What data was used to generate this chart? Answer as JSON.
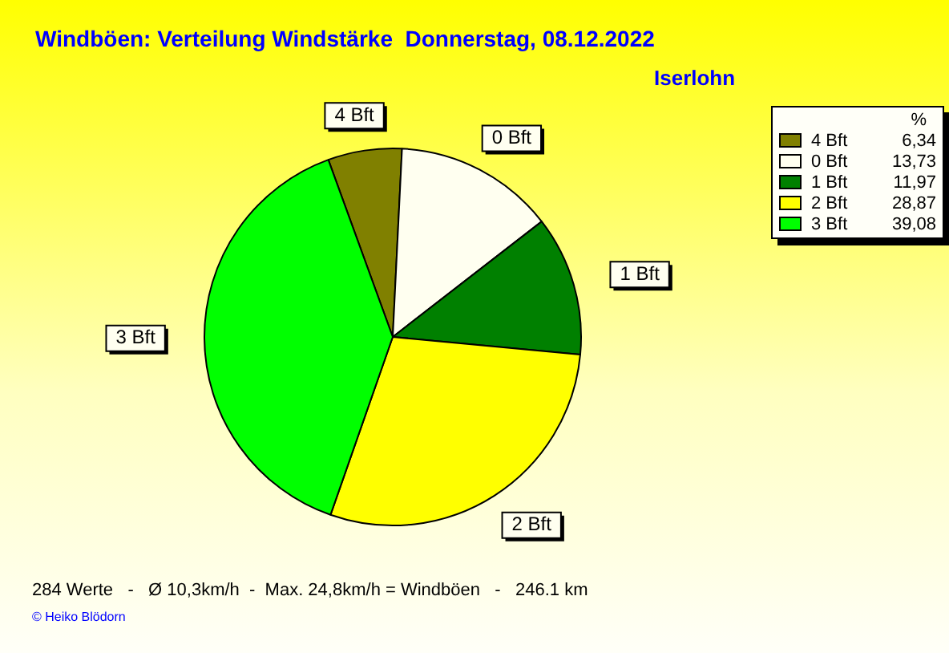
{
  "chart_data": {
    "type": "pie",
    "title": "Windböen: Verteilung Windstärke  Donnerstag, 08.12.2022",
    "subtitle": "Iserlohn",
    "legend_title": "%",
    "categories": [
      "4 Bft",
      "0 Bft",
      "1 Bft",
      "2 Bft",
      "3 Bft"
    ],
    "values": [
      6.34,
      13.73,
      11.97,
      28.87,
      39.08
    ],
    "colors": [
      "#808000",
      "#fffff0",
      "#008000",
      "#ffff00",
      "#00ff00"
    ],
    "value_labels": [
      "6,34",
      "13,73",
      "11,97",
      "28,87",
      "39,08"
    ],
    "legend": "top right",
    "annotations": [
      "284 Werte   -   Ø 10,3km/h  -  Max. 24,8km/h = Windböen   -   246.1 km",
      "© Heiko Blödorn"
    ]
  }
}
